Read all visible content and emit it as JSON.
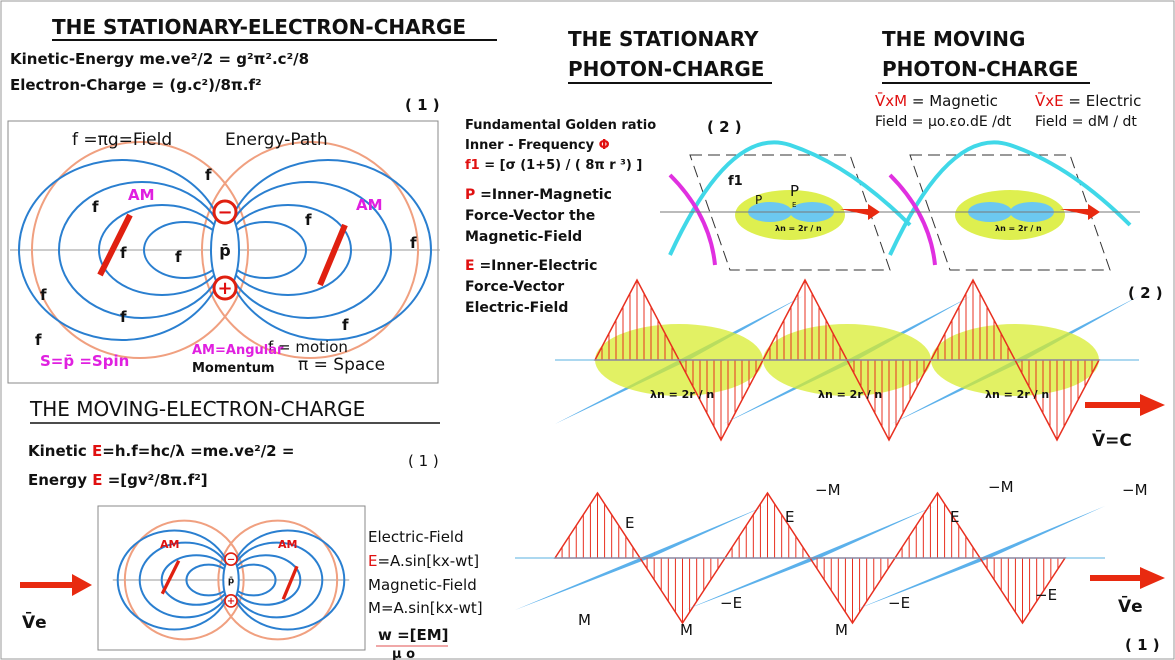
{
  "stationary_electron": {
    "title": "THE STATIONARY-ELECTRON-CHARGE",
    "kinetic": "Kinetic-Energy me.ve²/2 = g²π².c²/8",
    "charge": "Electron-Charge = (g.c²)/8π.f²",
    "number": "( 1 )",
    "diagram": {
      "field": "f =πg=Field",
      "energy_path": "Energy-Path",
      "am_labels": [
        "AM",
        "AM"
      ],
      "f_labels": [
        "f",
        "f",
        "f",
        "f",
        "f",
        "f",
        "f",
        "f",
        "f",
        "f"
      ],
      "motion": "f = motion",
      "spin": {
        "s": "S=",
        "p": "p̄",
        "rest": " =Spin"
      },
      "angular": [
        "AM=Angular",
        "Momentum"
      ],
      "space": "π = Space",
      "center": "p̄",
      "minus": "−",
      "plus": "+"
    }
  },
  "moving_electron": {
    "title": "THE MOVING-ELECTRON-CHARGE",
    "kinetic": {
      "a": "Kinetic ",
      "e": "E",
      "b": "=h.f=hc/λ =me.ve²/2 ="
    },
    "energy": {
      "a": "Energy ",
      "e": "E",
      "b": " =[gv²/8π.f²]"
    },
    "number": "( 1 )",
    "diagram": {
      "am_labels": [
        "AM",
        "AM"
      ],
      "center": "p̄",
      "minus": "−",
      "plus": "+",
      "velocity": "V̄e"
    },
    "electric": {
      "label": "Electric-Field",
      "e": "E",
      "formula": "=A.sin[kx-wt]"
    },
    "magnetic": {
      "label": "Magnetic-Field",
      "formula": "M=A.sin[kx-wt]"
    },
    "w": "w =[EM]",
    "mu": "μ o"
  },
  "stationary_photon": {
    "title": [
      "THE STATIONARY",
      "PHOTON-CHARGE"
    ],
    "golden": "Fundamental Golden ratio",
    "inner": {
      "text": "Inner - Frequency ",
      "phi": "Φ"
    },
    "f1": {
      "name": "f1",
      "formula": " = [σ (1+5) / ( 8π r ³) ]"
    },
    "number": "( 2 )",
    "p": {
      "letter": "P",
      "lines": [
        " =Inner-Magnetic",
        "Force-Vector the",
        "Magnetic-Field"
      ]
    },
    "e": {
      "letter": "E",
      "lines": [
        " =Inner-Electric",
        "Force-Vector",
        "Electric-Field"
      ]
    },
    "diagram": {
      "f1": "f1",
      "p": "P",
      "p_big": "P",
      "e": "E",
      "lambda": "λn = 2r / n"
    }
  },
  "moving_photon": {
    "title": [
      "THE MOVING",
      "PHOTON-CHARGE"
    ],
    "magnetic": {
      "v": "V̄xM",
      "text": " = Magnetic",
      "field": "Field = μo.εo.dE /dt"
    },
    "electric": {
      "v": "V̄xE",
      "text": " = Electric",
      "field": "Field = dM / dt"
    },
    "lambda": "λn = 2r / n"
  },
  "wave_2": {
    "number": "( 2 )",
    "lambda": [
      "λn = 2r / n",
      "λn = 2r / n",
      "λn = 2r / n"
    ],
    "velocity": "V̄=C"
  },
  "wave_1": {
    "labels": [
      "E",
      "E",
      "−M",
      "E",
      "−M",
      "−M",
      "M",
      "M",
      "M",
      "−E",
      "−E",
      "−E"
    ],
    "velocity": "V̄e",
    "number": "( 1 )"
  }
}
